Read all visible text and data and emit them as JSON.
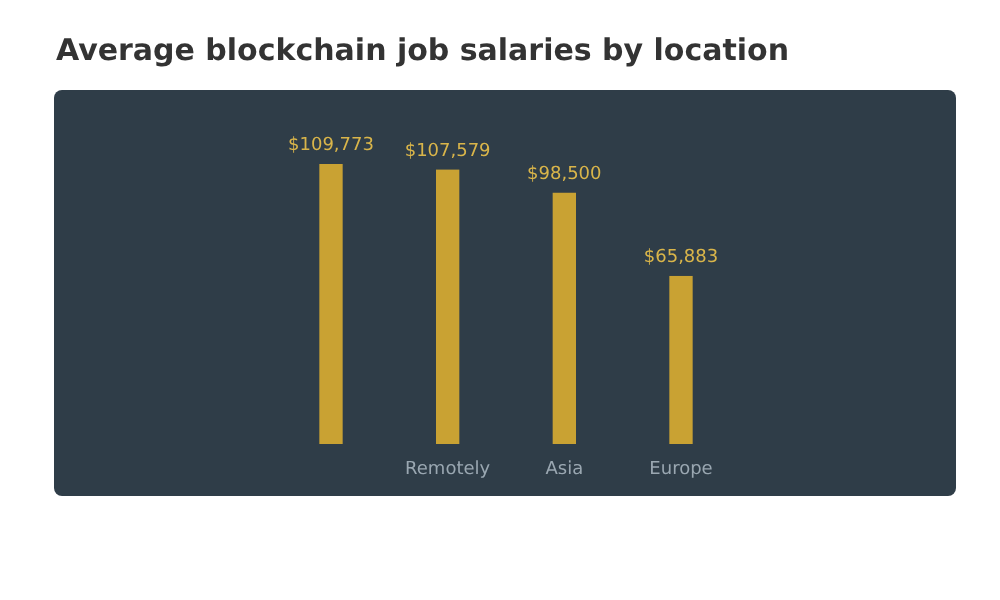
{
  "chart_data": {
    "type": "bar",
    "title": "Average blockchain job salaries by location",
    "categories": [
      null,
      "Remotely",
      "Asia",
      "Europe"
    ],
    "values": [
      109773,
      107579,
      98500,
      65883
    ],
    "value_labels": [
      "$109,773",
      "$107,579",
      "$98,500",
      "$65,883"
    ],
    "color": "#c9a233"
  }
}
